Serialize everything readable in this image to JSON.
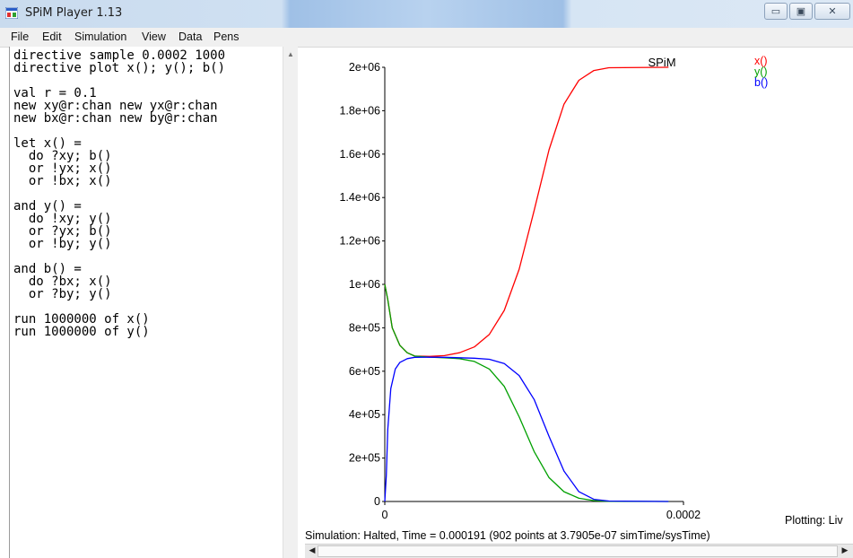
{
  "window": {
    "title": "SPiM Player 1.13",
    "icon": "app-window-icon",
    "controls": {
      "minimize": "▭",
      "maximize": "▣",
      "close": "✕"
    }
  },
  "menu": [
    "File",
    "Edit",
    "Simulation",
    "View",
    "Data",
    "Pens"
  ],
  "editor": {
    "lines": [
      "directive sample 0.0002 1000",
      "directive plot x(); y(); b()",
      "",
      "val r = 0.1",
      "new xy@r:chan new yx@r:chan",
      "new bx@r:chan new by@r:chan",
      "",
      "let x() =",
      "  do ?xy; b()",
      "  or !yx; x()",
      "  or !bx; x()",
      "",
      "and y() =",
      "  do !xy; y()",
      "  or ?yx; b()",
      "  or !by; y()",
      "",
      "and b() =",
      "  do ?bx; x()",
      "  or ?by; y()",
      "",
      "run 1000000 of x()",
      "run 1000000 of y()"
    ]
  },
  "chart_data": {
    "type": "line",
    "title": "SPiM",
    "xlabel": "",
    "ylabel": "",
    "xlim": [
      0,
      0.0002
    ],
    "ylim": [
      0,
      2000000
    ],
    "x_ticks": [
      "0",
      "0.0002"
    ],
    "y_ticks": [
      "0",
      "2e+05",
      "4e+05",
      "6e+05",
      "8e+05",
      "1e+06",
      "1.2e+06",
      "1.4e+06",
      "1.6e+06",
      "1.8e+06",
      "2e+06"
    ],
    "legend_position": "top-right",
    "series": [
      {
        "name": "x()",
        "color": "#ff0000",
        "points": [
          [
            0,
            1000000
          ],
          [
            2e-06,
            930000
          ],
          [
            5e-06,
            800000
          ],
          [
            1e-05,
            720000
          ],
          [
            1.5e-05,
            685000
          ],
          [
            2e-05,
            670000
          ],
          [
            3e-05,
            668000
          ],
          [
            4e-05,
            672000
          ],
          [
            5e-05,
            685000
          ],
          [
            6e-05,
            712000
          ],
          [
            7e-05,
            770000
          ],
          [
            8e-05,
            880000
          ],
          [
            9e-05,
            1070000
          ],
          [
            0.0001,
            1340000
          ],
          [
            0.00011,
            1620000
          ],
          [
            0.00012,
            1830000
          ],
          [
            0.00013,
            1940000
          ],
          [
            0.00014,
            1985000
          ],
          [
            0.00015,
            1998000
          ],
          [
            0.00019,
            2000000
          ]
        ]
      },
      {
        "name": "y()",
        "color": "#00a000",
        "points": [
          [
            0,
            1000000
          ],
          [
            2e-06,
            930000
          ],
          [
            5e-06,
            800000
          ],
          [
            1e-05,
            720000
          ],
          [
            1.5e-05,
            685000
          ],
          [
            2e-05,
            670000
          ],
          [
            3e-05,
            665000
          ],
          [
            4e-05,
            662000
          ],
          [
            5e-05,
            658000
          ],
          [
            6e-05,
            645000
          ],
          [
            7e-05,
            610000
          ],
          [
            8e-05,
            530000
          ],
          [
            9e-05,
            390000
          ],
          [
            0.0001,
            230000
          ],
          [
            0.00011,
            110000
          ],
          [
            0.00012,
            45000
          ],
          [
            0.00013,
            15000
          ],
          [
            0.00014,
            4000
          ],
          [
            0.00015,
            1000
          ],
          [
            0.00019,
            0
          ]
        ]
      },
      {
        "name": "b()",
        "color": "#0000ff",
        "points": [
          [
            0,
            0
          ],
          [
            1e-06,
            120000
          ],
          [
            2e-06,
            330000
          ],
          [
            4e-06,
            520000
          ],
          [
            7e-06,
            610000
          ],
          [
            1e-05,
            640000
          ],
          [
            1.5e-05,
            658000
          ],
          [
            2e-05,
            664000
          ],
          [
            3e-05,
            665000
          ],
          [
            4e-05,
            664000
          ],
          [
            5e-05,
            662000
          ],
          [
            6e-05,
            660000
          ],
          [
            7e-05,
            655000
          ],
          [
            8e-05,
            635000
          ],
          [
            9e-05,
            580000
          ],
          [
            0.0001,
            470000
          ],
          [
            0.00011,
            300000
          ],
          [
            0.00012,
            140000
          ],
          [
            0.00013,
            45000
          ],
          [
            0.00014,
            10000
          ],
          [
            0.00015,
            2000
          ],
          [
            0.00019,
            0
          ]
        ]
      }
    ]
  },
  "plotting_mode": "Plotting: Liv",
  "status": "Simulation: Halted, Time = 0.000191 (902 points at 3.7905e-07 simTime/sysTime)",
  "scrollbar": {
    "left": "◀",
    "right": "▶"
  }
}
